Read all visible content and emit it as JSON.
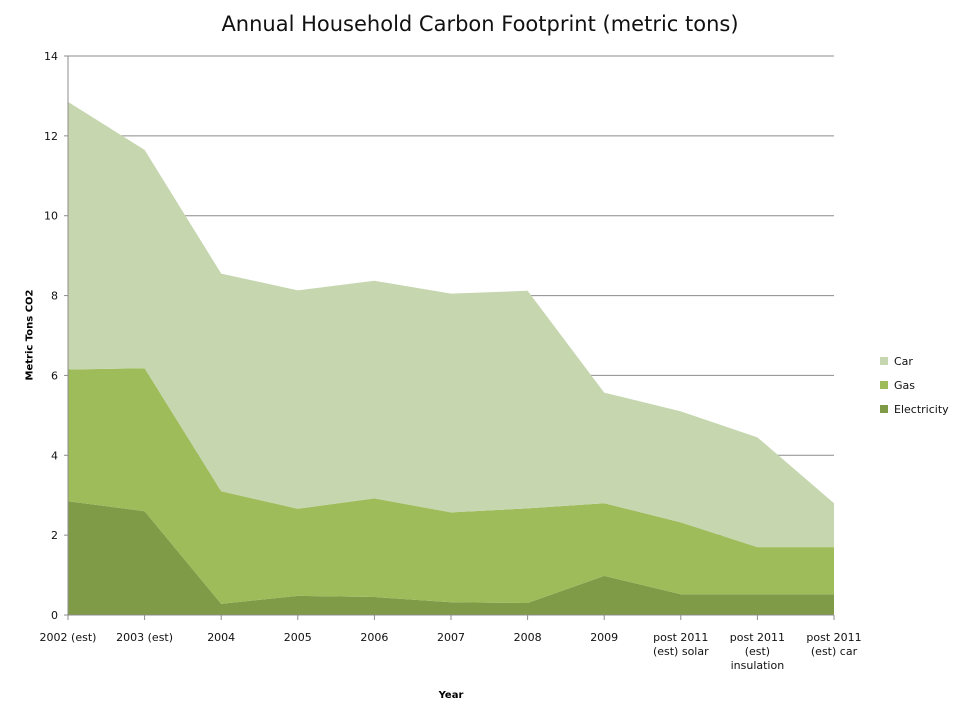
{
  "chart_data": {
    "type": "area",
    "stacked": true,
    "title": "Annual Household Carbon Footprint (metric tons)",
    "xlabel": "Year",
    "ylabel": "Metric Tons CO2",
    "categories": [
      "2002 (est)",
      "2003 (est)",
      "2004",
      "2005",
      "2006",
      "2007",
      "2008",
      "2009",
      "post 2011 (est) solar",
      "post 2011 (est) insulation",
      "post 2011 (est) car"
    ],
    "series": [
      {
        "name": "Electricity",
        "color": "#7f9b48",
        "values": [
          2.85,
          2.6,
          0.28,
          0.48,
          0.45,
          0.32,
          0.3,
          0.98,
          0.52,
          0.52,
          0.52
        ]
      },
      {
        "name": "Gas",
        "color": "#9fbc5b",
        "values": [
          3.3,
          3.58,
          2.82,
          2.18,
          2.47,
          2.25,
          2.37,
          1.82,
          1.8,
          1.18,
          1.18
        ]
      },
      {
        "name": "Car",
        "color": "#c6d6af",
        "values": [
          6.7,
          5.47,
          5.45,
          5.47,
          5.45,
          5.48,
          5.45,
          2.77,
          2.78,
          2.75,
          1.1
        ]
      }
    ],
    "ylim": [
      0,
      14
    ],
    "yticks": [
      "0",
      "2",
      "4",
      "6",
      "8",
      "10",
      "12",
      "14"
    ],
    "grid": true,
    "legend_position": "right"
  }
}
